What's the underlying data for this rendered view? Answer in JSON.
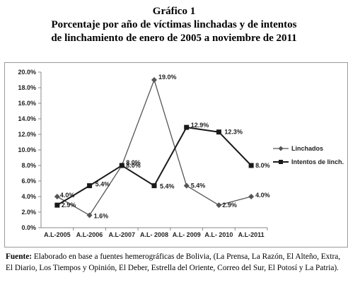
{
  "header": {
    "figure_label": "Gráfico 1",
    "title_line1": "Porcentaje por año de víctimas linchadas y de intentos",
    "title_line2": "de linchamiento de enero de 2005 a noviembre de 2011"
  },
  "source": {
    "label": "Fuente:",
    "text": "Elaborado en base a fuentes hemerográficas de Bolivia,  (La Prensa, La Razón, El Alteño, Extra, El Diario, Los Tiempos y Opinión, El Deber, Estrella del Oriente, Correo del Sur, El Potosí y La Patria)."
  },
  "chart_data": {
    "type": "line",
    "title": "",
    "xlabel": "",
    "ylabel": "",
    "categories": [
      "A.L-2005",
      "A.L-2006",
      "A.L-2007",
      "A.L- 2008",
      "A.L- 2009",
      "A.L- 2010",
      "A.L-2011"
    ],
    "ylim": [
      0,
      20
    ],
    "yticks": [
      "0.0%",
      "2.0%",
      "4.0%",
      "6.0%",
      "8.0%",
      "10.0%",
      "12.0%",
      "14.0%",
      "16.0%",
      "18.0%",
      "20.0%"
    ],
    "grid": false,
    "legend_position": "right",
    "series": [
      {
        "name": "Linchados",
        "marker": "diamond",
        "color": "#555555",
        "values": [
          4.0,
          1.6,
          8.0,
          19.0,
          5.4,
          2.9,
          4.0
        ],
        "labels": [
          "4.0%",
          "1.6%",
          "8.0%",
          "19.0%",
          "5.4%",
          "2.9%",
          "4.0%"
        ]
      },
      {
        "name": "Intentos de linch.",
        "marker": "square",
        "color": "#1a1a1a",
        "values": [
          2.9,
          5.4,
          8.0,
          5.4,
          12.9,
          12.3,
          8.0
        ],
        "labels": [
          "2.9%",
          "5.4%",
          "8.0%",
          "5.4%",
          "12.9%",
          "12.3%",
          "8.0%"
        ]
      }
    ]
  }
}
